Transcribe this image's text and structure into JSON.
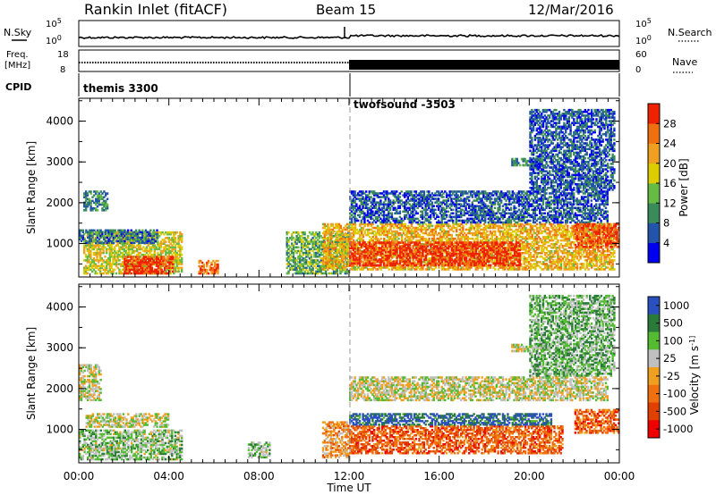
{
  "header": {
    "station": "Rankin Inlet (fitACF)",
    "beam": "Beam 15",
    "date": "12/Mar/2016"
  },
  "noise_panel": {
    "left_label": "N.Sky",
    "right_label": "N.Search",
    "left_ticks": [
      "10^5",
      "10^0"
    ],
    "right_ticks": [
      "10^5",
      "10^0"
    ]
  },
  "freq_panel": {
    "left_label_1": "Freq.",
    "left_label_2": "[MHz]",
    "right_label": "Nave",
    "left_ticks": [
      "18",
      "8"
    ],
    "right_ticks": [
      "60",
      "0"
    ]
  },
  "cpid_panel": {
    "label": "CPID",
    "programs": [
      {
        "name": "themis 3300",
        "start_hour": 0
      },
      {
        "name": "twofsound -3503",
        "start_hour": 12
      }
    ]
  },
  "colors": {
    "power": [
      "#0000ee",
      "#2255aa",
      "#3a8a5a",
      "#66bb44",
      "#ddcc00",
      "#f0a020",
      "#f07010",
      "#ee2200"
    ],
    "velocity": [
      "#2a4fbf",
      "#2a7a3a",
      "#55bb33",
      "#c0c0c0",
      "#f0a020",
      "#f07010",
      "#e04000",
      "#ee0000"
    ]
  },
  "chart_data": [
    {
      "type": "heatmap",
      "title": "Power",
      "xlabel": "Time UT",
      "ylabel": "Slant Range [km]",
      "colorbar_label": "Power [dB]",
      "x_range_hours": [
        0,
        24
      ],
      "x_tick_labels": [
        "00:00",
        "04:00",
        "08:00",
        "12:00",
        "16:00",
        "20:00",
        "00:00"
      ],
      "y_range_km": [
        180,
        4560
      ],
      "y_tick_labels": [
        "1000",
        "2000",
        "3000",
        "4000"
      ],
      "colorbar_ticks": [
        "4",
        "8",
        "12",
        "16",
        "20",
        "24",
        "28"
      ],
      "echo_regions": [
        {
          "t0": 0.2,
          "t1": 4.6,
          "r0": 250,
          "r1": 1300,
          "level": 0.55
        },
        {
          "t0": 2.0,
          "t1": 4.2,
          "r0": 250,
          "r1": 700,
          "level": 0.95
        },
        {
          "t0": 0.0,
          "t1": 3.5,
          "r0": 1000,
          "r1": 1350,
          "level": 0.25
        },
        {
          "t0": 0.2,
          "t1": 1.3,
          "r0": 1800,
          "r1": 2300,
          "level": 0.3
        },
        {
          "t0": 5.3,
          "t1": 6.2,
          "r0": 250,
          "r1": 600,
          "level": 0.8
        },
        {
          "t0": 9.2,
          "t1": 12.0,
          "r0": 250,
          "r1": 1300,
          "level": 0.4
        },
        {
          "t0": 10.8,
          "t1": 23.8,
          "r0": 350,
          "r1": 1500,
          "level": 0.65
        },
        {
          "t0": 12.0,
          "t1": 19.6,
          "r0": 450,
          "r1": 1050,
          "level": 0.95
        },
        {
          "t0": 12.0,
          "t1": 23.5,
          "r0": 1500,
          "r1": 2300,
          "level": 0.2
        },
        {
          "t0": 19.2,
          "t1": 20.6,
          "r0": 2900,
          "r1": 3100,
          "level": 0.3
        },
        {
          "t0": 22.0,
          "t1": 24.0,
          "r0": 900,
          "r1": 1500,
          "level": 0.9
        },
        {
          "t0": 20.0,
          "t1": 23.8,
          "r0": 2300,
          "r1": 4300,
          "level": 0.2
        }
      ]
    },
    {
      "type": "heatmap",
      "title": "Velocity",
      "xlabel": "Time UT",
      "ylabel": "Slant Range [km]",
      "colorbar_label": "Velocity [m s^-1]",
      "x_range_hours": [
        0,
        24
      ],
      "x_tick_labels": [
        "00:00",
        "04:00",
        "08:00",
        "12:00",
        "16:00",
        "20:00",
        "00:00"
      ],
      "y_range_km": [
        180,
        4560
      ],
      "y_tick_labels": [
        "1000",
        "2000",
        "3000",
        "4000"
      ],
      "colorbar_ticks": [
        "1000",
        "500",
        "100",
        "25",
        "-25",
        "-100",
        "-500",
        "-1000"
      ],
      "echo_regions": [
        {
          "t0": 0.0,
          "t1": 4.6,
          "r0": 250,
          "r1": 1000,
          "level": 0.35
        },
        {
          "t0": 0.3,
          "t1": 4.0,
          "r0": 1050,
          "r1": 1400,
          "level": 0.45
        },
        {
          "t0": 0.0,
          "t1": 1.0,
          "r0": 1700,
          "r1": 2600,
          "level": 0.45
        },
        {
          "t0": 7.5,
          "t1": 8.5,
          "r0": 300,
          "r1": 700,
          "level": 0.35
        },
        {
          "t0": 10.8,
          "t1": 12.0,
          "r0": 300,
          "r1": 1200,
          "level": 0.6
        },
        {
          "t0": 12.0,
          "t1": 21.5,
          "r0": 400,
          "r1": 1100,
          "level": 0.75
        },
        {
          "t0": 12.0,
          "t1": 21.0,
          "r0": 1100,
          "r1": 1400,
          "level": 0.1
        },
        {
          "t0": 12.0,
          "t1": 23.5,
          "r0": 1700,
          "r1": 2300,
          "level": 0.45
        },
        {
          "t0": 19.2,
          "t1": 20.6,
          "r0": 2900,
          "r1": 3100,
          "level": 0.45
        },
        {
          "t0": 22.0,
          "t1": 24.0,
          "r0": 900,
          "r1": 1500,
          "level": 0.75
        },
        {
          "t0": 20.0,
          "t1": 23.8,
          "r0": 2300,
          "r1": 4300,
          "level": 0.3
        }
      ]
    }
  ]
}
